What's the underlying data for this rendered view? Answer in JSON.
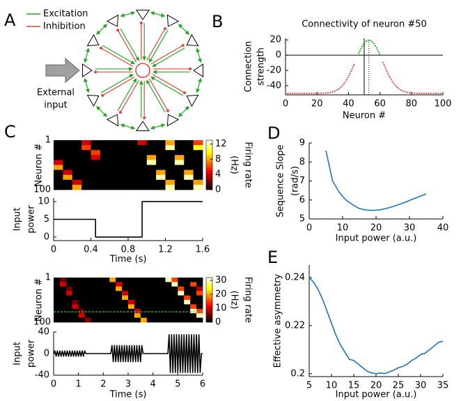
{
  "panel_labels": [
    "A",
    "B",
    "C",
    "D",
    "E"
  ],
  "diagram": {
    "legend": [
      {
        "label": "Excitation",
        "color": "#22a722"
      },
      {
        "label": "Inhibition",
        "color": "#e8413c"
      }
    ],
    "input_label": [
      "External",
      "input"
    ]
  },
  "chart_data": [
    {
      "type": "line",
      "title": "Connectivity of neuron #50",
      "xlabel": "Neuron #",
      "ylabel": [
        "Connection",
        "strength"
      ],
      "line_style": "dotted",
      "x": [
        0,
        2,
        4,
        6,
        8,
        10,
        12,
        14,
        16,
        18,
        20,
        22,
        24,
        26,
        28,
        30,
        32,
        34,
        36,
        38,
        40,
        42,
        44,
        46,
        48,
        50,
        52,
        54,
        56,
        58,
        60,
        62,
        64,
        66,
        68,
        70,
        72,
        74,
        76,
        78,
        80,
        82,
        84,
        86,
        88,
        90,
        92,
        94,
        96,
        98,
        100
      ],
      "series": [
        {
          "color": "#e8413c",
          "values": [
            -50,
            -50,
            -50,
            -50,
            -50,
            -50,
            -50,
            -50,
            -50,
            -50,
            -50,
            -49.9,
            -49.8,
            -49.5,
            -49,
            -48.1,
            -46.6,
            -44.1,
            -40.3,
            -35,
            -28,
            -19.4,
            -9.8,
            null,
            null,
            null,
            null,
            null,
            null,
            null,
            null,
            -9.8,
            -19.4,
            -28,
            -35,
            -40.3,
            -44.1,
            -46.6,
            -48.1,
            -49,
            -49.5,
            -49.8,
            -49.9,
            -50,
            -50,
            -50,
            -50,
            -50,
            -50,
            -50,
            -50
          ]
        },
        {
          "color": "#22a722",
          "values": [
            null,
            null,
            null,
            null,
            null,
            null,
            null,
            null,
            null,
            null,
            null,
            null,
            null,
            null,
            null,
            null,
            null,
            null,
            null,
            null,
            null,
            null,
            null,
            0,
            9,
            15.8,
            19.5,
            19.5,
            15.8,
            9,
            0,
            null,
            null,
            null,
            null,
            null,
            null,
            null,
            null,
            null,
            null,
            null,
            null,
            null,
            null,
            null,
            null,
            null,
            null,
            null,
            null
          ]
        }
      ],
      "hline": 0,
      "vlines": [
        {
          "x": 50,
          "style": "solid"
        },
        {
          "x": 53,
          "style": "dotted"
        }
      ],
      "xlim": [
        0,
        100
      ],
      "xticks": [
        0,
        20,
        40,
        60,
        80,
        100
      ],
      "ylim": [
        -52,
        22
      ],
      "yticks": [
        -40,
        -20,
        0,
        20
      ]
    },
    {
      "type": "heatmap",
      "ylabel": [
        "Neuron #"
      ],
      "colorbar_label": [
        "Firing rate",
        "(Hz)"
      ],
      "colormap": "hot",
      "xlim": [
        0,
        1.6
      ],
      "ylim": [
        1,
        100
      ],
      "y_reversed": true,
      "yticks": [
        1,
        100
      ],
      "zlim": [
        0,
        13
      ],
      "zticks": [
        0,
        4,
        8,
        12
      ],
      "z": [
        [
          0,
          0,
          0,
          4,
          0,
          0,
          0,
          0,
          0,
          4,
          0,
          0,
          8,
          0,
          0,
          6
        ],
        [
          0,
          0,
          0,
          6,
          0,
          0,
          0,
          0,
          0,
          0,
          0,
          0,
          12,
          0,
          0,
          10
        ],
        [
          0,
          0,
          0,
          0,
          6,
          0,
          0,
          0,
          0,
          0,
          0,
          0,
          0,
          0,
          0,
          0
        ],
        [
          0,
          0,
          0,
          0,
          4,
          0,
          0,
          0,
          0,
          0,
          8,
          0,
          0,
          8,
          0,
          0
        ],
        [
          4,
          0,
          0,
          0,
          0,
          0,
          0,
          0,
          0,
          0,
          12,
          0,
          0,
          12,
          0,
          0
        ],
        [
          8,
          0,
          0,
          0,
          0,
          0,
          0,
          0,
          0,
          0,
          0,
          0,
          0,
          0,
          0,
          0
        ],
        [
          0,
          4,
          0,
          0,
          0,
          0,
          0,
          0,
          0,
          0,
          0,
          8,
          0,
          0,
          8,
          0
        ],
        [
          0,
          8,
          0,
          0,
          0,
          0,
          0,
          0,
          0,
          0,
          0,
          12,
          0,
          0,
          12,
          0
        ],
        [
          0,
          0,
          4,
          0,
          0,
          0,
          0,
          0,
          0,
          0,
          0,
          0,
          8,
          0,
          0,
          8
        ],
        [
          0,
          0,
          8,
          0,
          0,
          0,
          0,
          0,
          0,
          0,
          0,
          0,
          12,
          0,
          0,
          12
        ]
      ]
    },
    {
      "type": "line",
      "xlabel": "Time (s)",
      "ylabel": [
        "Input",
        "power"
      ],
      "x": [
        0,
        0.45,
        0.45,
        0.95,
        0.95,
        1.6
      ],
      "series": [
        {
          "color": "#000000",
          "values": [
            5,
            5,
            0,
            0,
            10,
            10
          ]
        }
      ],
      "xlim": [
        0,
        1.6
      ],
      "xticks": [
        0,
        0.4,
        0.8,
        1.2,
        1.6
      ],
      "ylim": [
        -1,
        11
      ],
      "yticks": [
        0,
        5,
        10
      ]
    },
    {
      "type": "heatmap",
      "ylabel": [
        "Neuron #"
      ],
      "colorbar_label": [
        "Firing rate",
        "(Hz)"
      ],
      "colormap": "hot",
      "xlim": [
        0,
        6
      ],
      "ylim": [
        1,
        100
      ],
      "y_reversed": true,
      "yticks": [
        1,
        100
      ],
      "zlim": [
        0,
        32
      ],
      "zticks": [
        0,
        10,
        20,
        30
      ],
      "ref_line": {
        "y": 77,
        "color": "#33cc33"
      },
      "z": [
        [
          0,
          5,
          0,
          0,
          0,
          0,
          0,
          0,
          0,
          20,
          0,
          0,
          0,
          0,
          0,
          0,
          0,
          0,
          30,
          15,
          0,
          0,
          0,
          0
        ],
        [
          0,
          10,
          0,
          0,
          0,
          0,
          0,
          0,
          0,
          0,
          10,
          0,
          0,
          0,
          0,
          0,
          0,
          0,
          0,
          30,
          0,
          0,
          15,
          0
        ],
        [
          0,
          0,
          5,
          0,
          0,
          0,
          0,
          0,
          0,
          0,
          20,
          0,
          0,
          0,
          0,
          0,
          0,
          0,
          0,
          0,
          15,
          0,
          0,
          8
        ],
        [
          0,
          0,
          10,
          0,
          0,
          0,
          0,
          0,
          0,
          0,
          0,
          10,
          0,
          0,
          0,
          0,
          0,
          0,
          0,
          0,
          30,
          0,
          0,
          15
        ],
        [
          0,
          0,
          0,
          0,
          0,
          0,
          0,
          0,
          0,
          0,
          0,
          20,
          0,
          0,
          0,
          0,
          0,
          0,
          0,
          0,
          0,
          15,
          0,
          0
        ],
        [
          0,
          0,
          0,
          5,
          0,
          0,
          0,
          0,
          0,
          0,
          0,
          0,
          10,
          0,
          0,
          0,
          0,
          0,
          0,
          0,
          0,
          30,
          0,
          0
        ],
        [
          0,
          0,
          0,
          10,
          0,
          0,
          0,
          0,
          0,
          0,
          0,
          0,
          20,
          0,
          0,
          0,
          0,
          0,
          0,
          0,
          0,
          0,
          15,
          0
        ],
        [
          0,
          0,
          0,
          0,
          5,
          0,
          0,
          0,
          0,
          0,
          0,
          0,
          0,
          10,
          0,
          0,
          0,
          0,
          0,
          0,
          0,
          0,
          30,
          15
        ],
        [
          0,
          0,
          0,
          0,
          10,
          0,
          0,
          0,
          0,
          0,
          0,
          0,
          0,
          20,
          0,
          0,
          0,
          0,
          0,
          0,
          0,
          0,
          0,
          30
        ],
        [
          0,
          0,
          0,
          0,
          0,
          6,
          0,
          0,
          0,
          0,
          0,
          0,
          0,
          0,
          20,
          0,
          0,
          0,
          0,
          0,
          0,
          0,
          0,
          0
        ]
      ]
    },
    {
      "type": "line",
      "xlabel": "Time (s)",
      "ylabel": [
        "Input",
        "power"
      ],
      "x": [
        0,
        0.05,
        0.1,
        0.15,
        0.2,
        0.25,
        0.3,
        0.35,
        0.4,
        0.45,
        0.5,
        0.55,
        0.6,
        0.65,
        0.7,
        0.75,
        0.8,
        0.85,
        0.9,
        0.95,
        1,
        1.05,
        1.1,
        1.15,
        1.2,
        1.25,
        1.3,
        2.3,
        2.35,
        2.4,
        2.45,
        2.5,
        2.55,
        2.6,
        2.65,
        2.7,
        2.75,
        2.8,
        2.85,
        2.9,
        2.95,
        3,
        3.05,
        3.1,
        3.15,
        3.2,
        3.25,
        3.3,
        3.35,
        3.4,
        3.45,
        3.5,
        3.55,
        3.6,
        4.6,
        4.65,
        4.7,
        4.75,
        4.8,
        4.85,
        4.9,
        4.95,
        5,
        5.05,
        5.1,
        5.15,
        5.2,
        5.25,
        5.3,
        5.35,
        5.4,
        5.45,
        5.5,
        5.55,
        5.6,
        5.65,
        5.7,
        5.75,
        5.8,
        5.85,
        5.9,
        5.95,
        6
      ],
      "series": [
        {
          "color": "#000000",
          "values": [
            0,
            5,
            -5,
            5,
            -5,
            5,
            -5,
            5,
            -5,
            5,
            -5,
            5,
            -5,
            5,
            -5,
            5,
            -5,
            5,
            -5,
            5,
            -5,
            5,
            -5,
            5,
            -5,
            5,
            0,
            0,
            15,
            -15,
            15,
            -15,
            15,
            -15,
            15,
            -15,
            15,
            -15,
            15,
            -15,
            15,
            -15,
            15,
            -15,
            15,
            -15,
            15,
            -15,
            15,
            -15,
            15,
            -15,
            15,
            0,
            0,
            35,
            -35,
            35,
            -35,
            35,
            -35,
            35,
            -35,
            35,
            -35,
            35,
            -35,
            35,
            -35,
            35,
            -35,
            35,
            -35,
            35,
            -35,
            35,
            -35,
            35,
            -35,
            35,
            -35,
            0,
            0
          ]
        }
      ],
      "xlim": [
        0,
        6
      ],
      "xticks": [
        0,
        1,
        2,
        3,
        4,
        5,
        6
      ],
      "ylim": [
        -40,
        40
      ],
      "yticks": [
        -40,
        0,
        40
      ]
    },
    {
      "type": "line",
      "xlabel": "Input power (a.u.)",
      "ylabel": [
        "Sequence Slope",
        "(rad/s)"
      ],
      "x": [
        5,
        7,
        9,
        11,
        13,
        15,
        17,
        19,
        21,
        23,
        25,
        27,
        29,
        31,
        33,
        35
      ],
      "series": [
        {
          "color": "#1f74b5",
          "values": [
            8.6,
            7.0,
            6.4,
            6.0,
            5.75,
            5.55,
            5.47,
            5.45,
            5.48,
            5.55,
            5.65,
            5.77,
            5.9,
            6.05,
            6.18,
            6.32
          ]
        }
      ],
      "xlim": [
        0,
        40
      ],
      "xticks": [
        0,
        10,
        20,
        30,
        40
      ],
      "ylim": [
        5,
        9
      ],
      "yticks": [
        5,
        6,
        7,
        8,
        9
      ]
    },
    {
      "type": "line",
      "xlabel": "Input power (a.u.)",
      "ylabel": [
        "Effective asymmetry"
      ],
      "x": [
        5,
        6,
        7,
        8,
        9,
        10,
        11,
        12,
        13,
        14,
        15,
        16,
        17,
        18,
        19,
        20,
        21,
        22,
        23,
        24,
        25,
        26,
        27,
        28,
        29,
        30,
        31,
        32,
        33,
        34,
        35
      ],
      "series": [
        {
          "color": "#1f74b5",
          "values": [
            0.24,
            0.238,
            0.235,
            0.231,
            0.226,
            0.221,
            0.216,
            0.212,
            0.209,
            0.206,
            0.2055,
            0.204,
            0.2025,
            0.201,
            0.2003,
            0.2,
            0.2003,
            0.2,
            0.2008,
            0.2015,
            0.2025,
            0.203,
            0.204,
            0.2055,
            0.2065,
            0.208,
            0.2085,
            0.21,
            0.2115,
            0.213,
            0.2135
          ]
        }
      ],
      "xlim": [
        5,
        35
      ],
      "xticks": [
        5,
        10,
        15,
        20,
        25,
        30,
        35
      ],
      "ylim": [
        0.1988,
        0.2452
      ],
      "yticks": [
        0.2,
        0.22,
        0.24
      ]
    }
  ]
}
